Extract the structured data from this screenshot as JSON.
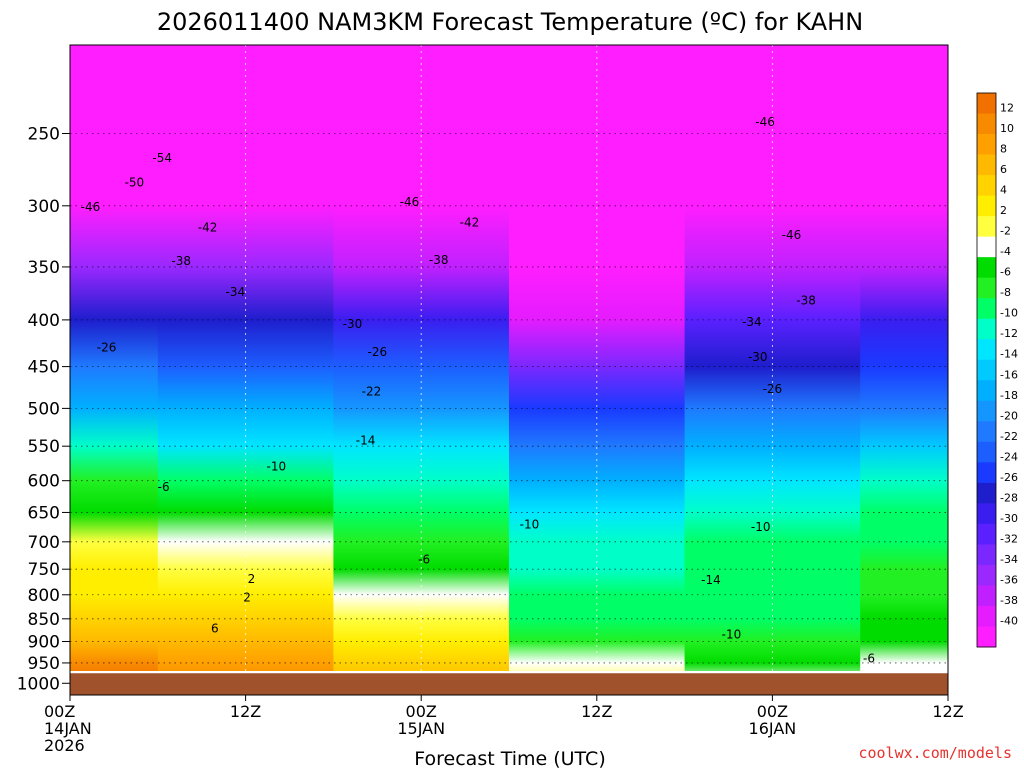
{
  "chart_data": {
    "type": "heatmap",
    "title": "2026011400 NAM3KM Forecast Temperature (ºC) for KAHN",
    "xlabel": "Forecast Time (UTC)",
    "ylabel": "",
    "x_ticks": [
      {
        "hour": 0,
        "lines": [
          "00Z",
          "14JAN",
          "2026"
        ]
      },
      {
        "hour": 12,
        "lines": [
          "12Z"
        ]
      },
      {
        "hour": 24,
        "lines": [
          "00Z",
          "15JAN"
        ]
      },
      {
        "hour": 36,
        "lines": [
          "12Z"
        ]
      },
      {
        "hour": 48,
        "lines": [
          "00Z",
          "16JAN"
        ]
      },
      {
        "hour": 60,
        "lines": [
          "12Z"
        ]
      }
    ],
    "xlim": [
      0,
      60
    ],
    "y_ticks": [
      250,
      300,
      350,
      400,
      450,
      500,
      550,
      600,
      650,
      700,
      750,
      800,
      850,
      900,
      950,
      1000
    ],
    "ylim": [
      200,
      1030
    ],
    "y_scale": "log",
    "grid": true,
    "colorbar_labels": [
      12,
      10,
      8,
      6,
      4,
      2,
      -2,
      -4,
      -6,
      -8,
      -10,
      -12,
      -14,
      -16,
      -18,
      -20,
      -22,
      -24,
      -26,
      -28,
      -30,
      -32,
      -34,
      -36,
      -38,
      -40
    ],
    "colorbar_colors": [
      "#f07000",
      "#f88a00",
      "#ffa000",
      "#ffb900",
      "#ffd200",
      "#ffee00",
      "#ffff40",
      "#ffffff",
      "#00dc00",
      "#22f022",
      "#00ff66",
      "#00ffc8",
      "#00e6ff",
      "#00caff",
      "#00b0ff",
      "#1596ff",
      "#1f7aff",
      "#1d5eff",
      "#1a3aff",
      "#1e1ecd",
      "#3a1ef0",
      "#5a20ff",
      "#7a28ff",
      "#9a28ff",
      "#c020ff",
      "#e41cff",
      "#ff1eff"
    ],
    "temperature_profiles": [
      {
        "hour": 0,
        "levels": [
          {
            "p": 1000,
            "t": 12
          },
          {
            "p": 950,
            "t": 10
          },
          {
            "p": 900,
            "t": 7
          },
          {
            "p": 850,
            "t": 5
          },
          {
            "p": 800,
            "t": 3
          },
          {
            "p": 750,
            "t": 2
          },
          {
            "p": 700,
            "t": -2
          },
          {
            "p": 650,
            "t": -5
          },
          {
            "p": 600,
            "t": -7
          },
          {
            "p": 550,
            "t": -12
          },
          {
            "p": 500,
            "t": -17
          },
          {
            "p": 450,
            "t": -22
          },
          {
            "p": 400,
            "t": -28
          },
          {
            "p": 350,
            "t": -36
          },
          {
            "p": 300,
            "t": -46
          },
          {
            "p": 250,
            "t": -52
          }
        ]
      },
      {
        "hour": 12,
        "levels": [
          {
            "p": 1000,
            "t": 10
          },
          {
            "p": 950,
            "t": 8
          },
          {
            "p": 900,
            "t": 6
          },
          {
            "p": 850,
            "t": 4
          },
          {
            "p": 800,
            "t": 2
          },
          {
            "p": 750,
            "t": -2
          },
          {
            "p": 700,
            "t": -4
          },
          {
            "p": 650,
            "t": -6
          },
          {
            "p": 600,
            "t": -9
          },
          {
            "p": 550,
            "t": -13
          },
          {
            "p": 500,
            "t": -18
          },
          {
            "p": 450,
            "t": -23
          },
          {
            "p": 400,
            "t": -28
          },
          {
            "p": 350,
            "t": -35
          },
          {
            "p": 300,
            "t": -44
          },
          {
            "p": 250,
            "t": -50
          }
        ]
      },
      {
        "hour": 24,
        "levels": [
          {
            "p": 1000,
            "t": 6
          },
          {
            "p": 950,
            "t": 4
          },
          {
            "p": 900,
            "t": 2
          },
          {
            "p": 850,
            "t": -2
          },
          {
            "p": 800,
            "t": -4
          },
          {
            "p": 750,
            "t": -6
          },
          {
            "p": 700,
            "t": -7
          },
          {
            "p": 650,
            "t": -9
          },
          {
            "p": 600,
            "t": -11
          },
          {
            "p": 550,
            "t": -14
          },
          {
            "p": 500,
            "t": -19
          },
          {
            "p": 450,
            "t": -24
          },
          {
            "p": 400,
            "t": -30
          },
          {
            "p": 350,
            "t": -38
          },
          {
            "p": 300,
            "t": -45
          },
          {
            "p": 250,
            "t": -50
          }
        ]
      },
      {
        "hour": 36,
        "levels": [
          {
            "p": 1000,
            "t": -2
          },
          {
            "p": 950,
            "t": -4
          },
          {
            "p": 900,
            "t": -7
          },
          {
            "p": 850,
            "t": -9
          },
          {
            "p": 800,
            "t": -10
          },
          {
            "p": 750,
            "t": -11
          },
          {
            "p": 700,
            "t": -12
          },
          {
            "p": 650,
            "t": -14
          },
          {
            "p": 600,
            "t": -17
          },
          {
            "p": 550,
            "t": -21
          },
          {
            "p": 500,
            "t": -26
          },
          {
            "p": 450,
            "t": -33
          },
          {
            "p": 400,
            "t": -39
          },
          {
            "p": 350,
            "t": -44
          },
          {
            "p": 300,
            "t": -48
          },
          {
            "p": 250,
            "t": -50
          }
        ]
      },
      {
        "hour": 48,
        "levels": [
          {
            "p": 1000,
            "t": -3
          },
          {
            "p": 950,
            "t": -5
          },
          {
            "p": 900,
            "t": -8
          },
          {
            "p": 850,
            "t": -10
          },
          {
            "p": 800,
            "t": -10
          },
          {
            "p": 750,
            "t": -9
          },
          {
            "p": 700,
            "t": -10
          },
          {
            "p": 650,
            "t": -11
          },
          {
            "p": 600,
            "t": -14
          },
          {
            "p": 550,
            "t": -18
          },
          {
            "p": 500,
            "t": -22
          },
          {
            "p": 450,
            "t": -27
          },
          {
            "p": 400,
            "t": -32
          },
          {
            "p": 350,
            "t": -38
          },
          {
            "p": 300,
            "t": -44
          },
          {
            "p": 250,
            "t": -47
          }
        ]
      },
      {
        "hour": 60,
        "levels": [
          {
            "p": 1000,
            "t": -3
          },
          {
            "p": 950,
            "t": -4
          },
          {
            "p": 900,
            "t": -5
          },
          {
            "p": 850,
            "t": -6
          },
          {
            "p": 800,
            "t": -7
          },
          {
            "p": 750,
            "t": -8
          },
          {
            "p": 700,
            "t": -9
          },
          {
            "p": 650,
            "t": -10
          },
          {
            "p": 600,
            "t": -12
          },
          {
            "p": 550,
            "t": -16
          },
          {
            "p": 500,
            "t": -21
          },
          {
            "p": 450,
            "t": -25
          },
          {
            "p": 400,
            "t": -30
          },
          {
            "p": 350,
            "t": -37
          },
          {
            "p": 300,
            "t": -44
          },
          {
            "p": 250,
            "t": -47
          }
        ]
      }
    ],
    "contour_labels": [
      {
        "text": "-54",
        "hour": 6.3,
        "p": 266
      },
      {
        "text": "-50",
        "hour": 4.4,
        "p": 283
      },
      {
        "text": "-46",
        "hour": 1.4,
        "p": 301
      },
      {
        "text": "-46",
        "hour": 23.2,
        "p": 297
      },
      {
        "text": "-46",
        "hour": 47.5,
        "p": 243
      },
      {
        "text": "-46",
        "hour": 49.3,
        "p": 323
      },
      {
        "text": "-42",
        "hour": 9.4,
        "p": 317
      },
      {
        "text": "-42",
        "hour": 27.3,
        "p": 313
      },
      {
        "text": "-38",
        "hour": 7.6,
        "p": 345
      },
      {
        "text": "-38",
        "hour": 25.2,
        "p": 344
      },
      {
        "text": "-38",
        "hour": 50.3,
        "p": 381
      },
      {
        "text": "-34",
        "hour": 11.3,
        "p": 373
      },
      {
        "text": "-34",
        "hour": 46.6,
        "p": 402
      },
      {
        "text": "-30",
        "hour": 19.3,
        "p": 404
      },
      {
        "text": "-30",
        "hour": 47.0,
        "p": 439
      },
      {
        "text": "-26",
        "hour": 2.5,
        "p": 429
      },
      {
        "text": "-26",
        "hour": 21.0,
        "p": 434
      },
      {
        "text": "-26",
        "hour": 48.0,
        "p": 476
      },
      {
        "text": "-22",
        "hour": 20.6,
        "p": 479
      },
      {
        "text": "-14",
        "hour": 20.2,
        "p": 542
      },
      {
        "text": "-14",
        "hour": 43.8,
        "p": 771
      },
      {
        "text": "-10",
        "hour": 14.1,
        "p": 579
      },
      {
        "text": "-10",
        "hour": 31.4,
        "p": 670
      },
      {
        "text": "-10",
        "hour": 47.2,
        "p": 674
      },
      {
        "text": "-10",
        "hour": 45.2,
        "p": 884
      },
      {
        "text": "-6",
        "hour": 6.4,
        "p": 610
      },
      {
        "text": "-6",
        "hour": 24.2,
        "p": 732
      },
      {
        "text": "-6",
        "hour": 54.6,
        "p": 939
      },
      {
        "text": "2",
        "hour": 12.4,
        "p": 769
      },
      {
        "text": "2",
        "hour": 12.1,
        "p": 805
      },
      {
        "text": "6",
        "hour": 9.9,
        "p": 871
      }
    ],
    "ground_color": "#a0522d"
  },
  "credit": "coolwx.com/models"
}
